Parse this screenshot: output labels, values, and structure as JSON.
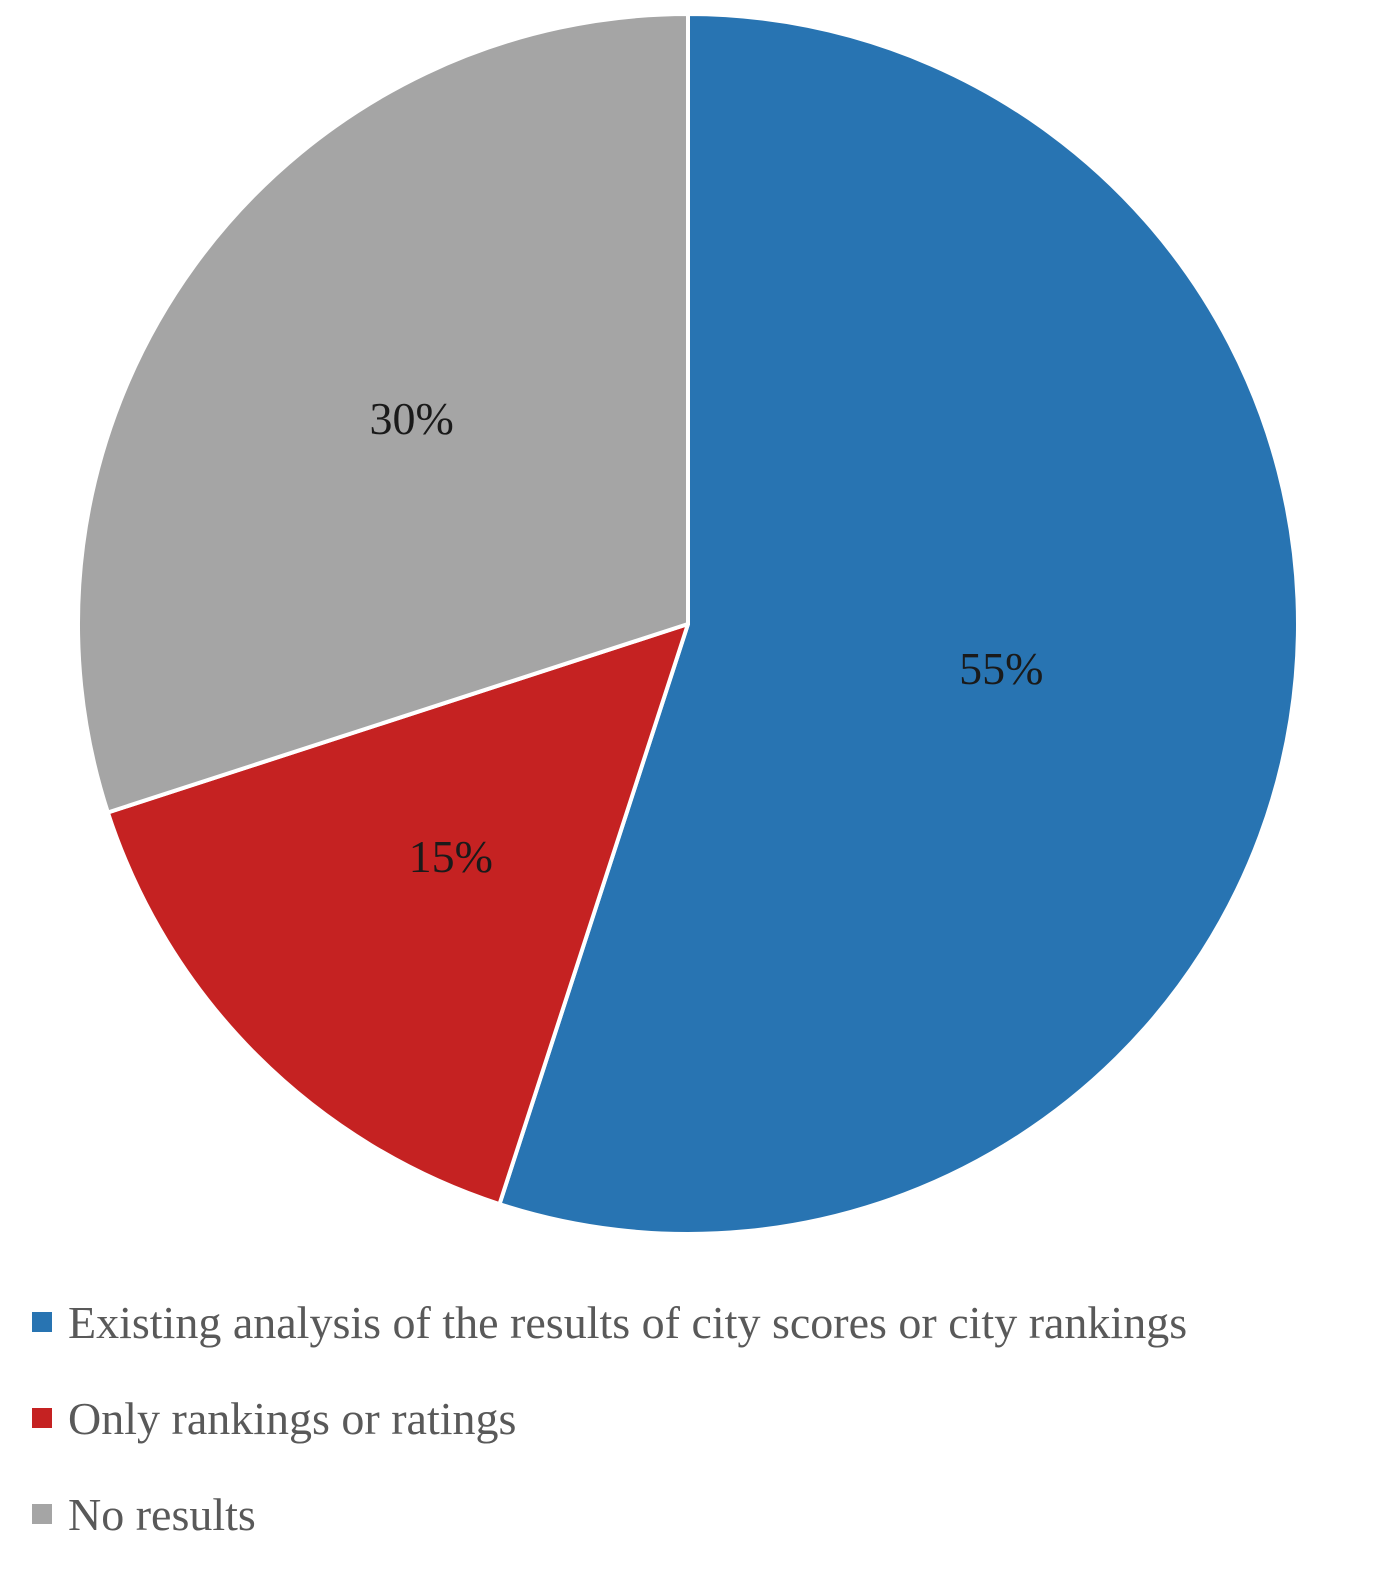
{
  "chart_data": {
    "type": "pie",
    "slices": [
      {
        "label": "Existing analysis of the results of city scores or city rankings",
        "value": 55,
        "display": "55%",
        "color": "#2874B2"
      },
      {
        "label": "Only rankings or ratings",
        "value": 15,
        "display": "15%",
        "color": "#C52222"
      },
      {
        "label": "No results",
        "value": 30,
        "display": "30%",
        "color": "#A5A5A5"
      }
    ],
    "start_angle_deg": 0,
    "direction": "clockwise",
    "legend_position": "bottom-left",
    "slice_border_color": "#ffffff"
  }
}
